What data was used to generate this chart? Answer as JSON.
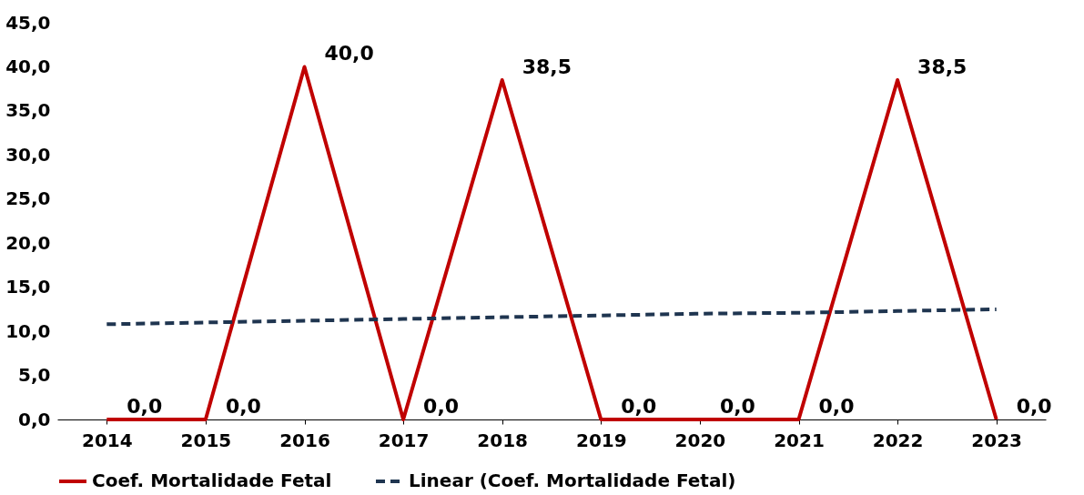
{
  "chart_data": {
    "type": "line",
    "categories": [
      "2014",
      "2015",
      "2016",
      "2017",
      "2018",
      "2019",
      "2020",
      "2021",
      "2022",
      "2023"
    ],
    "series": [
      {
        "name": "Coef. Mortalidade Fetal",
        "color": "#c00000",
        "values": [
          0,
          0,
          40,
          0,
          38.5,
          0,
          0,
          0,
          38.5,
          0
        ],
        "value_labels": [
          "0,0",
          "0,0",
          "40,0",
          "0,0",
          "38,5",
          "0,0",
          "0,0",
          "0,0",
          "38,5",
          "0,0"
        ],
        "line_style": "solid"
      },
      {
        "name": "Linear (Coef. Mortalidade Fetal)",
        "type": "line",
        "color": "#1f3550",
        "values": [
          10.8,
          11.0,
          11.2,
          11.4,
          11.6,
          11.8,
          12.0,
          12.1,
          12.3,
          12.5
        ],
        "line_style": "dashed"
      }
    ],
    "ylim": [
      0,
      45
    ],
    "yticks": [
      {
        "value": 0,
        "label": "0,0"
      },
      {
        "value": 5,
        "label": "5,0"
      },
      {
        "value": 10,
        "label": "10,0"
      },
      {
        "value": 15,
        "label": "15,0"
      },
      {
        "value": 20,
        "label": "20,0"
      },
      {
        "value": 25,
        "label": "25,0"
      },
      {
        "value": 30,
        "label": "30,0"
      },
      {
        "value": 35,
        "label": "35,0"
      },
      {
        "value": 40,
        "label": "40,0"
      },
      {
        "value": 45,
        "label": "45,0"
      }
    ],
    "grid": false,
    "legend": "bottom",
    "marker": "none"
  }
}
